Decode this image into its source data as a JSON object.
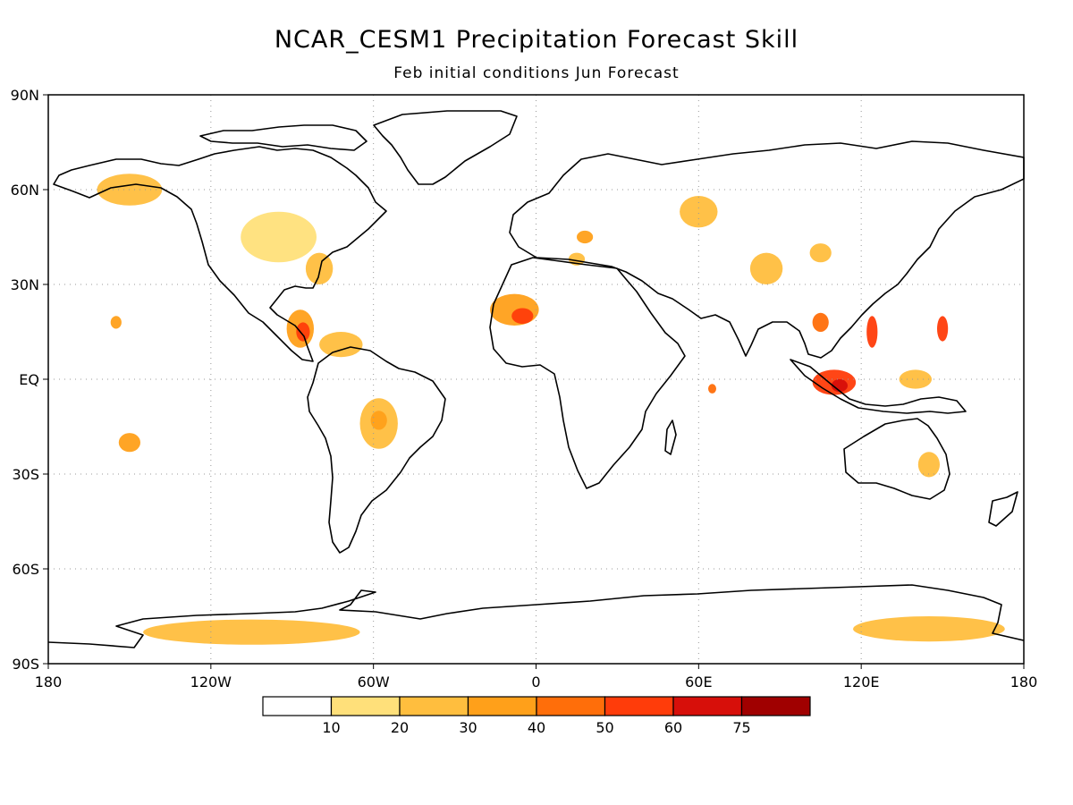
{
  "figure": {
    "title": "NCAR_CESM1 Precipitation Forecast Skill",
    "subtitle": "Feb initial conditions  Jun Forecast"
  },
  "chart_data": {
    "type": "heatmap",
    "title": "NCAR_CESM1 Precipitation Forecast Skill",
    "subtitle": "Feb initial conditions  Jun Forecast",
    "xlim": [
      -180,
      180
    ],
    "ylim": [
      -90,
      90
    ],
    "lat_ticks": [
      {
        "value": 90,
        "label": "90N"
      },
      {
        "value": 60,
        "label": "60N"
      },
      {
        "value": 30,
        "label": "30N"
      },
      {
        "value": 0,
        "label": "EQ"
      },
      {
        "value": -30,
        "label": "30S"
      },
      {
        "value": -60,
        "label": "60S"
      },
      {
        "value": -90,
        "label": "90S"
      }
    ],
    "lon_ticks": [
      {
        "value": -180,
        "label": "180"
      },
      {
        "value": -120,
        "label": "120W"
      },
      {
        "value": -60,
        "label": "60W"
      },
      {
        "value": 0,
        "label": "0"
      },
      {
        "value": 60,
        "label": "60E"
      },
      {
        "value": 120,
        "label": "120E"
      },
      {
        "value": 180,
        "label": "180"
      }
    ],
    "grid": true,
    "colorbar": {
      "levels": [
        "10",
        "20",
        "30",
        "40",
        "50",
        "60",
        "75"
      ],
      "colors": [
        "#ffffff",
        "#ffe07a",
        "#ffbe3e",
        "#ffa01a",
        "#ff6e0a",
        "#ff3c0a",
        "#d70f0a",
        "#a00000"
      ]
    },
    "skill_regions": [
      {
        "lon": -8,
        "lat": 22,
        "rlon": 9,
        "rlat": 5,
        "level": 3
      },
      {
        "lon": -5,
        "lat": 20,
        "rlon": 4,
        "rlat": 2.5,
        "level": 5
      },
      {
        "lon": -87,
        "lat": 16,
        "rlon": 5,
        "rlat": 6,
        "level": 3
      },
      {
        "lon": -86,
        "lat": 15,
        "rlon": 2.5,
        "rlat": 3,
        "level": 5
      },
      {
        "lon": -72,
        "lat": 11,
        "rlon": 8,
        "rlat": 4,
        "level": 2
      },
      {
        "lon": -58,
        "lat": -14,
        "rlon": 7,
        "rlat": 8,
        "level": 2
      },
      {
        "lon": -58,
        "lat": -13,
        "rlon": 3,
        "rlat": 3,
        "level": 3
      },
      {
        "lon": -95,
        "lat": 45,
        "rlon": 14,
        "rlat": 8,
        "level": 1
      },
      {
        "lon": -80,
        "lat": 35,
        "rlon": 5,
        "rlat": 5,
        "level": 2
      },
      {
        "lon": -150,
        "lat": 60,
        "rlon": 12,
        "rlat": 5,
        "level": 2
      },
      {
        "lon": -155,
        "lat": 18,
        "rlon": 2,
        "rlat": 2,
        "level": 3
      },
      {
        "lon": -150,
        "lat": -20,
        "rlon": 4,
        "rlat": 3,
        "level": 3
      },
      {
        "lon": -105,
        "lat": -80,
        "rlon": 40,
        "rlat": 4,
        "level": 2
      },
      {
        "lon": 145,
        "lat": -79,
        "rlon": 28,
        "rlat": 4,
        "level": 2
      },
      {
        "lon": 110,
        "lat": -1,
        "rlon": 8,
        "rlat": 4,
        "level": 5
      },
      {
        "lon": 112,
        "lat": -2,
        "rlon": 3,
        "rlat": 2,
        "level": 6
      },
      {
        "lon": 124,
        "lat": 15,
        "rlon": 2,
        "rlat": 5,
        "level": 5
      },
      {
        "lon": 150,
        "lat": 16,
        "rlon": 2,
        "rlat": 4,
        "level": 5
      },
      {
        "lon": 105,
        "lat": 18,
        "rlon": 3,
        "rlat": 3,
        "level": 4
      },
      {
        "lon": 140,
        "lat": 0,
        "rlon": 6,
        "rlat": 3,
        "level": 2
      },
      {
        "lon": 60,
        "lat": 53,
        "rlon": 7,
        "rlat": 5,
        "level": 2
      },
      {
        "lon": 85,
        "lat": 35,
        "rlon": 6,
        "rlat": 5,
        "level": 2
      },
      {
        "lon": 105,
        "lat": 40,
        "rlon": 4,
        "rlat": 3,
        "level": 2
      },
      {
        "lon": 18,
        "lat": 45,
        "rlon": 3,
        "rlat": 2,
        "level": 3
      },
      {
        "lon": 15,
        "lat": 38,
        "rlon": 3,
        "rlat": 2,
        "level": 2
      },
      {
        "lon": 65,
        "lat": -3,
        "rlon": 1.5,
        "rlat": 1.5,
        "level": 4
      },
      {
        "lon": 145,
        "lat": -27,
        "rlon": 4,
        "rlat": 4,
        "level": 2
      }
    ]
  }
}
